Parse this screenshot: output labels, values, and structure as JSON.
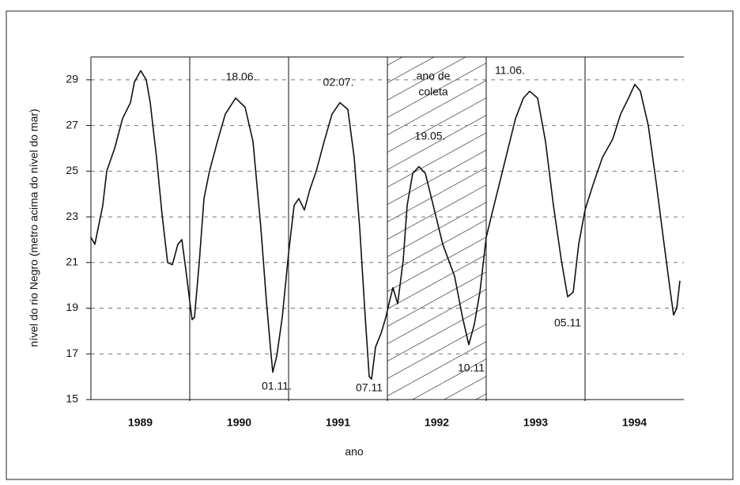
{
  "chart_data": {
    "type": "line",
    "x_label": "ano",
    "y_label": "nível do rio Negro (metro acima do nível do mar)",
    "xlim": [
      1989,
      1995
    ],
    "xticks": [
      {
        "value": 1989.5,
        "label": "1989"
      },
      {
        "value": 1990.5,
        "label": "1990"
      },
      {
        "value": 1991.5,
        "label": "1991"
      },
      {
        "value": 1992.5,
        "label": "1992"
      },
      {
        "value": 1993.5,
        "label": "1993"
      },
      {
        "value": 1994.5,
        "label": "1994"
      }
    ],
    "ylim": [
      15,
      30
    ],
    "yticks": [
      15,
      17,
      19,
      21,
      23,
      25,
      27,
      29
    ],
    "grid": true,
    "shaded_span": [
      1992,
      1993
    ],
    "series": [
      {
        "color": "#111111",
        "x": [
          1989.0,
          1989.04,
          1989.12,
          1989.16,
          1989.24,
          1989.32,
          1989.4,
          1989.44,
          1989.504,
          1989.56,
          1989.6,
          1989.664,
          1989.72,
          1989.776,
          1989.824,
          1989.88,
          1989.92,
          1989.96,
          1990.0,
          1990.024,
          1990.048,
          1990.096,
          1990.144,
          1990.2,
          1990.28,
          1990.36,
          1990.464,
          1990.56,
          1990.64,
          1990.72,
          1990.776,
          1990.816,
          1990.84,
          1990.88,
          1990.936,
          1991.0,
          1991.056,
          1991.104,
          1991.16,
          1991.216,
          1991.28,
          1991.36,
          1991.44,
          1991.52,
          1991.6,
          1991.664,
          1991.72,
          1991.776,
          1991.816,
          1991.84,
          1991.88,
          1991.936,
          1991.984,
          1992.016,
          1992.056,
          1992.104,
          1992.16,
          1992.2,
          1992.256,
          1992.32,
          1992.384,
          1992.464,
          1992.56,
          1992.68,
          1992.76,
          1992.824,
          1992.88,
          1992.936,
          1993.0,
          1993.056,
          1993.136,
          1993.216,
          1993.296,
          1993.376,
          1993.44,
          1993.52,
          1993.6,
          1993.68,
          1993.76,
          1993.824,
          1993.88,
          1993.936,
          1994.0,
          1994.08,
          1994.176,
          1994.28,
          1994.36,
          1994.44,
          1994.504,
          1994.56,
          1994.64,
          1994.72,
          1994.8,
          1994.864,
          1994.896,
          1994.928,
          1994.96
        ],
        "values": [
          22.1,
          21.8,
          23.5,
          25,
          26,
          27.3,
          28,
          28.9,
          29.4,
          29,
          28,
          25.6,
          23.1,
          21,
          20.9,
          21.8,
          22,
          20.7,
          19.3,
          18.5,
          18.6,
          21,
          23.8,
          25,
          26.3,
          27.5,
          28.2,
          27.8,
          26.3,
          22.5,
          19.3,
          17.3,
          16.2,
          16.9,
          18.6,
          21.4,
          23.5,
          23.8,
          23.3,
          24.2,
          25,
          26.3,
          27.5,
          28,
          27.7,
          25.6,
          22.5,
          18.6,
          16,
          15.9,
          17.3,
          17.9,
          18.6,
          19.2,
          19.9,
          19.2,
          21.1,
          23.5,
          24.9,
          25.2,
          24.9,
          23.5,
          21.8,
          20.4,
          18.6,
          17.4,
          18.3,
          19.7,
          22.1,
          23.1,
          24.5,
          25.9,
          27.3,
          28.2,
          28.5,
          28.2,
          26.3,
          23.5,
          21.1,
          19.5,
          19.7,
          21.8,
          23.3,
          24.4,
          25.6,
          26.4,
          27.5,
          28.2,
          28.8,
          28.5,
          27,
          24.5,
          21.8,
          19.7,
          18.7,
          19,
          20.2
        ]
      }
    ],
    "annotations": [
      {
        "text": "18.06."
      },
      {
        "text": "02.07."
      },
      {
        "text": "ano de"
      },
      {
        "text": "coleta"
      },
      {
        "text": "19.05."
      },
      {
        "text": "11.06."
      },
      {
        "text": "01.11."
      },
      {
        "text": "07.11"
      },
      {
        "text": "10.11"
      },
      {
        "text": "05.11"
      }
    ]
  }
}
